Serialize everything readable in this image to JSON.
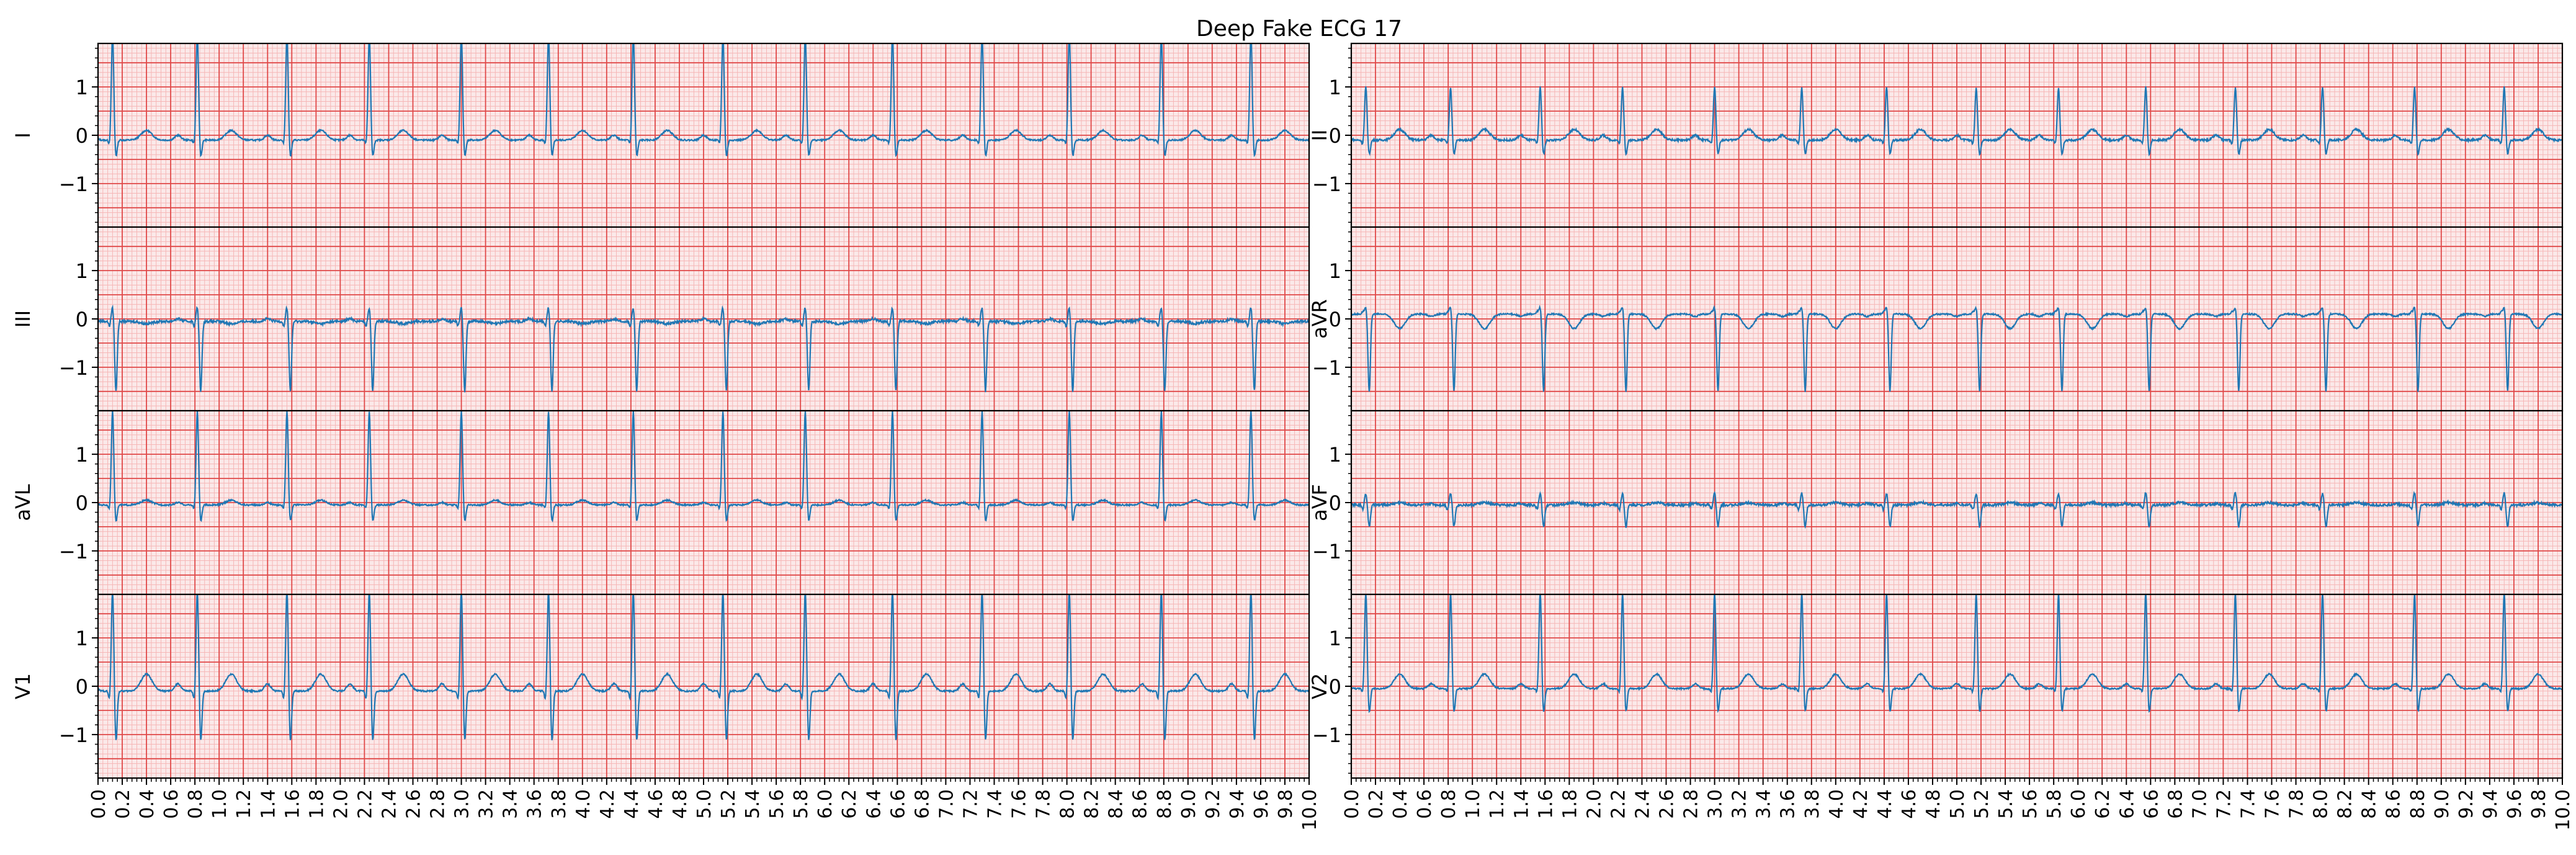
{
  "title": "Deep Fake ECG 17",
  "colors": {
    "trace": "#1f77b4",
    "grid_major": "#e04848",
    "grid_minor": "#f6b6b6",
    "background": "#fbe9e9",
    "frame": "#000000"
  },
  "chart_data": {
    "type": "line",
    "title": "Deep Fake ECG 17",
    "grid": true,
    "xlim": [
      0.0,
      10.0
    ],
    "ylim": [
      -1.9,
      1.9
    ],
    "xticks": [
      "0.0",
      "0.2",
      "0.4",
      "0.6",
      "0.8",
      "1.0",
      "1.2",
      "1.4",
      "1.6",
      "1.8",
      "2.0",
      "2.2",
      "2.4",
      "2.6",
      "2.8",
      "3.0",
      "3.2",
      "3.4",
      "3.6",
      "3.8",
      "4.0",
      "4.2",
      "4.4",
      "4.6",
      "4.8",
      "5.0",
      "5.2",
      "5.4",
      "5.6",
      "5.8",
      "6.0",
      "6.2",
      "6.4",
      "6.6",
      "6.8",
      "7.0",
      "7.2",
      "7.4",
      "7.6",
      "7.8",
      "8.0",
      "8.2",
      "8.4",
      "8.6",
      "8.8",
      "9.0",
      "9.2",
      "9.4",
      "9.6",
      "9.8",
      "10.0"
    ],
    "yticks": [
      "1",
      "0",
      "−1"
    ],
    "ytick_values": [
      1,
      0,
      -1
    ],
    "layout": "4 rows x 2 columns, shared x axis per column",
    "beat_times": [
      0.12,
      0.82,
      1.56,
      2.24,
      3.0,
      3.72,
      4.42,
      5.16,
      5.84,
      6.56,
      7.3,
      8.02,
      8.78,
      9.52
    ],
    "leads": [
      {
        "name": "I",
        "col": 0,
        "row": 0,
        "r": 2.2,
        "q": -0.1,
        "s": -0.35,
        "p": 0.1,
        "t": 0.2,
        "baseline": -0.1,
        "noise": 0.03
      },
      {
        "name": "II",
        "col": 1,
        "row": 0,
        "r": 1.1,
        "q": -0.1,
        "s": -0.3,
        "p": 0.1,
        "t": 0.22,
        "baseline": -0.1,
        "noise": 0.04
      },
      {
        "name": "III",
        "col": 0,
        "row": 1,
        "r": 0.3,
        "q": -0.1,
        "s": -1.45,
        "p": 0.05,
        "t": -0.05,
        "baseline": -0.05,
        "noise": 0.05
      },
      {
        "name": "aVR",
        "col": 1,
        "row": 1,
        "r": 0.15,
        "q": 0.05,
        "s": -1.6,
        "p": -0.05,
        "t": -0.3,
        "baseline": 0.1,
        "noise": 0.03
      },
      {
        "name": "aVL",
        "col": 0,
        "row": 2,
        "r": 1.95,
        "q": -0.1,
        "s": -0.35,
        "p": 0.05,
        "t": 0.1,
        "baseline": -0.05,
        "noise": 0.03
      },
      {
        "name": "aVF",
        "col": 1,
        "row": 2,
        "r": 0.25,
        "q": -0.1,
        "s": -0.45,
        "p": 0.03,
        "t": 0.05,
        "baseline": -0.05,
        "noise": 0.05
      },
      {
        "name": "V1",
        "col": 0,
        "row": 3,
        "r": 2.1,
        "q": -0.2,
        "s": -1.05,
        "p": 0.15,
        "t": 0.35,
        "baseline": -0.1,
        "noise": 0.03
      },
      {
        "name": "V2",
        "col": 1,
        "row": 3,
        "r": 2.0,
        "q": -0.1,
        "s": -0.5,
        "p": 0.1,
        "t": 0.3,
        "baseline": -0.05,
        "noise": 0.03
      }
    ]
  }
}
